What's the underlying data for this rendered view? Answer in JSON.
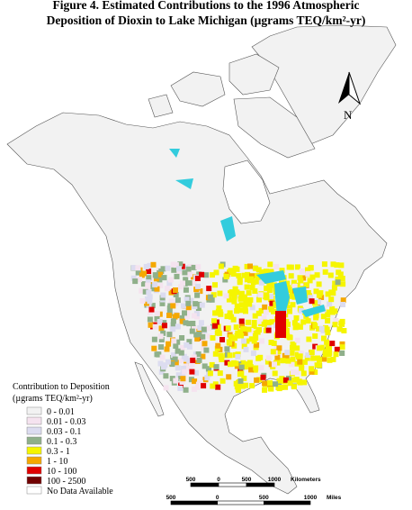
{
  "title": [
    "Figure 4. Estimated Contributions to the 1996 Atmospheric",
    "Deposition of Dioxin to Lake Michigan (µgrams TEQ/km²-yr)"
  ],
  "north_label": "N",
  "legend": {
    "title": [
      "Contribution to Deposition",
      "(µgrams TEQ/km²-yr)"
    ],
    "items": [
      {
        "label": "0 - 0.01",
        "color": "#f2f2f2"
      },
      {
        "label": "0.01 - 0.03",
        "color": "#f5e3ef"
      },
      {
        "label": "0.03 - 0.1",
        "color": "#dcdcf0"
      },
      {
        "label": "0.1 - 0.3",
        "color": "#8fb08a"
      },
      {
        "label": "0.3 - 1",
        "color": "#f5f500"
      },
      {
        "label": "1 - 10",
        "color": "#f5a800"
      },
      {
        "label": "10 - 100",
        "color": "#e00000"
      },
      {
        "label": "100 - 2500",
        "color": "#700000"
      },
      {
        "label": "No Data Available",
        "color": "#ffffff"
      }
    ]
  },
  "scale_bars": [
    {
      "ticks": [
        "500",
        "0",
        "500",
        "1000"
      ],
      "unit": "Kilometers"
    },
    {
      "ticks": [
        "500",
        "0",
        "500",
        "1000"
      ],
      "unit": "Miles"
    }
  ]
}
